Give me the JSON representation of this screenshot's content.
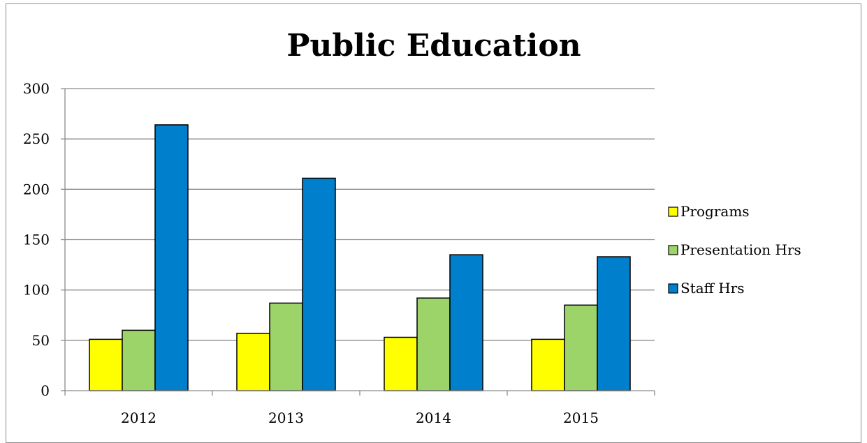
{
  "chart_data": {
    "type": "bar",
    "title": "Public Education",
    "xlabel": "",
    "ylabel": "",
    "categories": [
      "2012",
      "2013",
      "2014",
      "2015"
    ],
    "series": [
      {
        "name": "Programs",
        "values": [
          51,
          57,
          53,
          51
        ],
        "color": "#FFFF00"
      },
      {
        "name": "Presentation Hrs",
        "values": [
          60,
          87,
          92,
          85
        ],
        "color": "#9DD46A"
      },
      {
        "name": "Staff Hrs",
        "values": [
          264,
          211,
          135,
          133
        ],
        "color": "#0080CC"
      }
    ],
    "ylim": [
      0,
      300
    ],
    "yticks": [
      "0",
      "50",
      "100",
      "150",
      "200",
      "250",
      "300"
    ],
    "grid": true,
    "legend_position": "right"
  }
}
